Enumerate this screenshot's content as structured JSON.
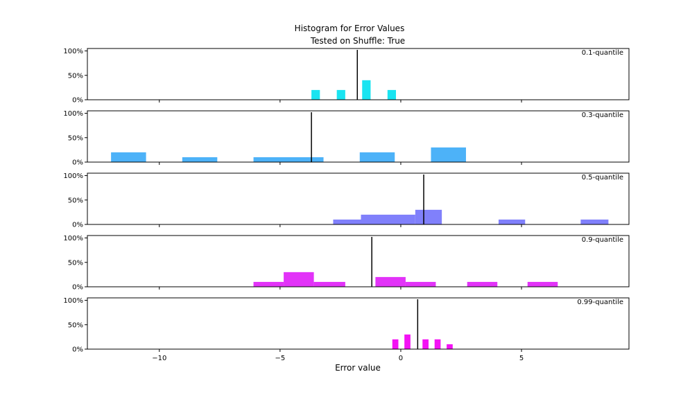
{
  "chart_data": {
    "type": "bar",
    "title": "Histogram for Error Values",
    "subtitle": "Tested on Shuffle: True",
    "xlabel": "Error value",
    "ylabel": "",
    "xlim": [
      -12.98,
      9.45
    ],
    "ylim": [
      0,
      1.05
    ],
    "x_ticks": [
      -10,
      -5,
      0,
      5
    ],
    "x_tick_labels": [
      "−10",
      "−5",
      "0",
      "5"
    ],
    "y_ticks": [
      0,
      0.5,
      1.0
    ],
    "y_tick_labels": [
      "0%",
      "50%",
      "100%"
    ],
    "grid": false,
    "panels": [
      {
        "annotation": "0.1-quantile",
        "color": "#1ae4f1",
        "marker_x": -1.8,
        "bins": [
          {
            "x0": -3.7,
            "x1": -3.35,
            "value": 0.2
          },
          {
            "x0": -2.65,
            "x1": -2.3,
            "value": 0.2
          },
          {
            "x0": -1.6,
            "x1": -1.25,
            "value": 0.4
          },
          {
            "x0": -0.55,
            "x1": -0.2,
            "value": 0.2
          }
        ]
      },
      {
        "annotation": "0.3-quantile",
        "color": "#4db2f8",
        "marker_x": -3.7,
        "bins": [
          {
            "x0": -12.0,
            "x1": -10.55,
            "value": 0.2
          },
          {
            "x0": -9.05,
            "x1": -7.6,
            "value": 0.1
          },
          {
            "x0": -6.1,
            "x1": -3.2,
            "value": 0.1
          },
          {
            "x0": -1.7,
            "x1": -0.25,
            "value": 0.2
          },
          {
            "x0": 1.25,
            "x1": 2.7,
            "value": 0.3
          }
        ]
      },
      {
        "annotation": "0.5-quantile",
        "color": "#8080fb",
        "marker_x": 0.95,
        "bins": [
          {
            "x0": -2.8,
            "x1": -1.65,
            "value": 0.1
          },
          {
            "x0": -1.65,
            "x1": 0.6,
            "value": 0.2
          },
          {
            "x0": 0.6,
            "x1": 1.7,
            "value": 0.3
          },
          {
            "x0": 4.05,
            "x1": 5.15,
            "value": 0.1
          },
          {
            "x0": 7.45,
            "x1": 8.6,
            "value": 0.1
          }
        ]
      },
      {
        "annotation": "0.9-quantile",
        "color": "#e233f8",
        "marker_x": -1.2,
        "bins": [
          {
            "x0": -6.1,
            "x1": -4.85,
            "value": 0.1
          },
          {
            "x0": -4.85,
            "x1": -3.6,
            "value": 0.3
          },
          {
            "x0": -3.6,
            "x1": -2.3,
            "value": 0.1
          },
          {
            "x0": -1.05,
            "x1": 0.2,
            "value": 0.2
          },
          {
            "x0": 0.2,
            "x1": 1.45,
            "value": 0.1
          },
          {
            "x0": 2.75,
            "x1": 4.0,
            "value": 0.1
          },
          {
            "x0": 5.25,
            "x1": 6.5,
            "value": 0.1
          }
        ]
      },
      {
        "annotation": "0.99-quantile",
        "color": "#f312f4",
        "marker_x": 0.7,
        "bins": [
          {
            "x0": -0.35,
            "x1": -0.1,
            "value": 0.2
          },
          {
            "x0": 0.15,
            "x1": 0.4,
            "value": 0.3
          },
          {
            "x0": 0.9,
            "x1": 1.15,
            "value": 0.2
          },
          {
            "x0": 1.4,
            "x1": 1.65,
            "value": 0.2
          },
          {
            "x0": 1.9,
            "x1": 2.15,
            "value": 0.1
          }
        ]
      }
    ]
  }
}
